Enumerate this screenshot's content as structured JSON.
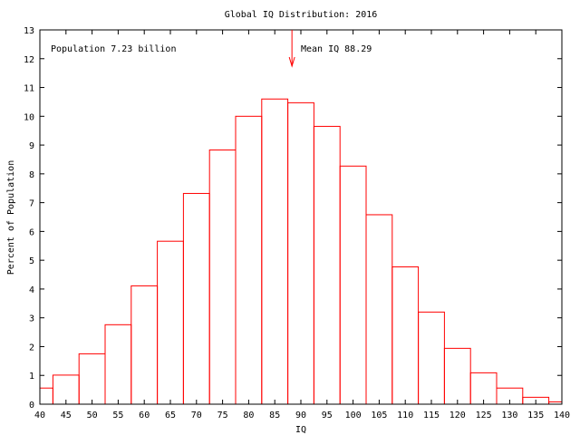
{
  "chart_data": {
    "type": "bar",
    "title": "Global IQ Distribution: 2016",
    "xlabel": "IQ",
    "ylabel": "Percent of Population",
    "xlim": [
      40,
      140
    ],
    "ylim": [
      0,
      13
    ],
    "xticks": [
      40,
      45,
      50,
      55,
      60,
      65,
      70,
      75,
      80,
      85,
      90,
      95,
      100,
      105,
      110,
      115,
      120,
      125,
      130,
      135,
      140
    ],
    "yticks": [
      0,
      1,
      2,
      3,
      4,
      5,
      6,
      7,
      8,
      9,
      10,
      11,
      12,
      13
    ],
    "bin_width": 5,
    "x": [
      40,
      45,
      50,
      55,
      60,
      65,
      70,
      75,
      80,
      85,
      90,
      95,
      100,
      105,
      110,
      115,
      120,
      125,
      130,
      135,
      140
    ],
    "values": [
      0.56,
      1.01,
      1.75,
      2.76,
      4.11,
      5.66,
      7.32,
      8.83,
      10.0,
      10.6,
      10.47,
      9.65,
      8.27,
      6.58,
      4.77,
      3.2,
      1.94,
      1.09,
      0.56,
      0.24,
      0.08
    ],
    "bar_color": "#ff0000",
    "grid": false,
    "annotations": {
      "population": "Population 7.23 billion",
      "mean_label": "Mean IQ 88.29",
      "mean_value": 88.29
    }
  }
}
